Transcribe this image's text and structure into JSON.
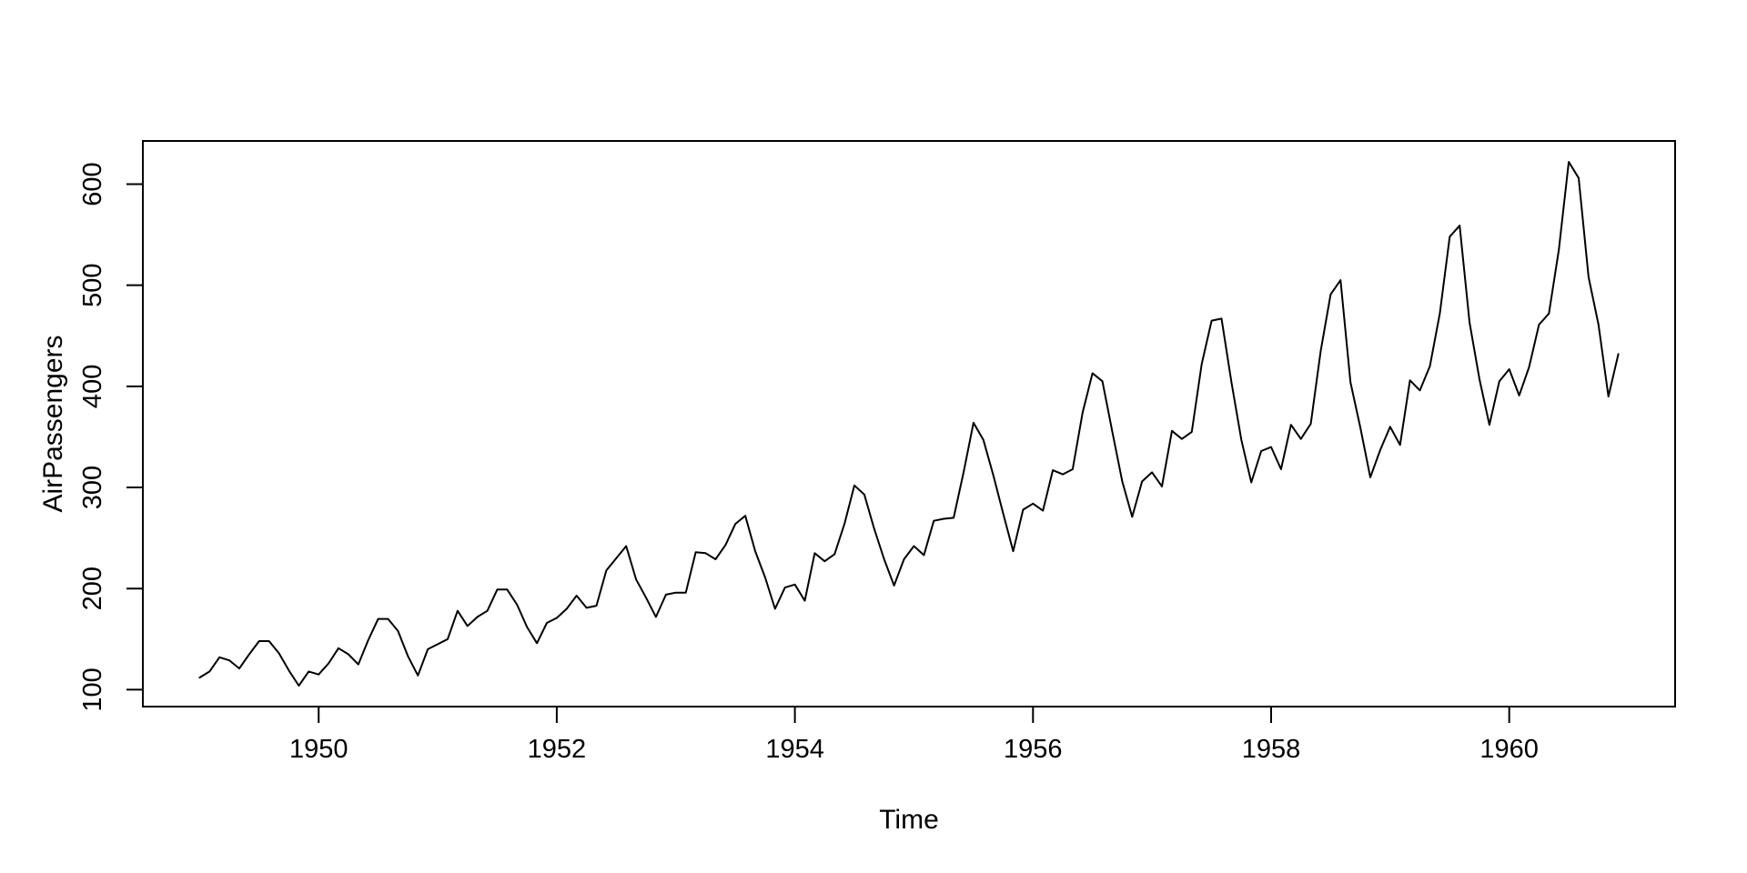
{
  "figure": {
    "background_color": "#ffffff",
    "foreground_color": "#000000"
  },
  "chart_data": {
    "type": "line",
    "title": "",
    "xlabel": "Time",
    "ylabel": "AirPassengers",
    "grid": false,
    "legend": null,
    "line_color": "#000000",
    "axis_color": "#000000",
    "x_start_year": 1949,
    "samples_per_year": 12,
    "x_range_data": [
      1949.0,
      1960.9167
    ],
    "y_range_data": [
      104,
      622
    ],
    "axis_expansion": 0.04,
    "x_ticks": [
      1950,
      1952,
      1954,
      1956,
      1958,
      1960
    ],
    "x_tick_labels": [
      "1950",
      "1952",
      "1954",
      "1956",
      "1958",
      "1960"
    ],
    "y_ticks": [
      100,
      200,
      300,
      400,
      500,
      600
    ],
    "y_tick_labels": [
      "100",
      "200",
      "300",
      "400",
      "500",
      "600"
    ],
    "series": [
      {
        "name": "AirPassengers",
        "values": [
          112,
          118,
          132,
          129,
          121,
          135,
          148,
          148,
          136,
          119,
          104,
          118,
          115,
          126,
          141,
          135,
          125,
          149,
          170,
          170,
          158,
          133,
          114,
          140,
          145,
          150,
          178,
          163,
          172,
          178,
          199,
          199,
          184,
          162,
          146,
          166,
          171,
          180,
          193,
          181,
          183,
          218,
          230,
          242,
          209,
          191,
          172,
          194,
          196,
          196,
          236,
          235,
          229,
          243,
          264,
          272,
          237,
          211,
          180,
          201,
          204,
          188,
          235,
          227,
          234,
          264,
          302,
          293,
          259,
          229,
          203,
          229,
          242,
          233,
          267,
          269,
          270,
          315,
          364,
          347,
          312,
          274,
          237,
          278,
          284,
          277,
          317,
          313,
          318,
          374,
          413,
          405,
          355,
          306,
          271,
          306,
          315,
          301,
          356,
          348,
          355,
          422,
          465,
          467,
          404,
          347,
          305,
          336,
          340,
          318,
          362,
          348,
          363,
          435,
          491,
          505,
          404,
          359,
          310,
          337,
          360,
          342,
          406,
          396,
          420,
          472,
          548,
          559,
          463,
          407,
          362,
          405,
          417,
          391,
          419,
          461,
          472,
          535,
          622,
          606,
          508,
          461,
          390,
          432
        ]
      }
    ]
  }
}
